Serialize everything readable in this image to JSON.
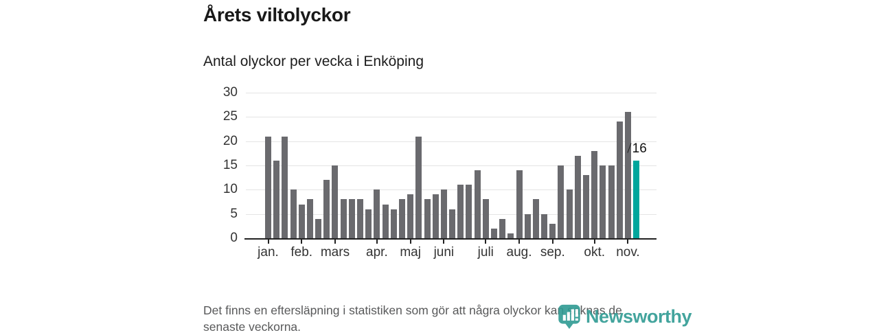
{
  "header": {
    "title": "Årets viltolyckor",
    "subtitle": "Antal olyckor per vecka i Enköping"
  },
  "footer": {
    "note_line1": "Det finns en eftersläpning i statistiken som gör att några olyckor kan saknas de",
    "note_line2": "senaste veckorna.",
    "brand_name": "Newsworthy",
    "brand_color": "#2f9b93",
    "brand_icon": "newsworthy-pin-icon"
  },
  "chart_data": {
    "type": "bar",
    "title": "Årets viltolyckor",
    "subtitle": "Antal olyckor per vecka i Enköping",
    "xlabel": "",
    "ylabel": "",
    "ylim": [
      0,
      30
    ],
    "yticks": [
      0,
      5,
      10,
      15,
      20,
      25,
      30
    ],
    "grid": true,
    "values": [
      21,
      16,
      21,
      10,
      7,
      8,
      4,
      12,
      15,
      8,
      8,
      8,
      6,
      10,
      7,
      6,
      8,
      9,
      21,
      8,
      9,
      10,
      6,
      11,
      11,
      14,
      8,
      2,
      4,
      1,
      14,
      5,
      8,
      5,
      3,
      15,
      10,
      17,
      13,
      18,
      15,
      15,
      24,
      26,
      16
    ],
    "month_labels": [
      "jan.",
      "feb.",
      "mars",
      "apr.",
      "maj",
      "juni",
      "juli",
      "aug.",
      "sep.",
      "okt.",
      "nov."
    ],
    "month_tick_bar_index": [
      0,
      4,
      8,
      13,
      17,
      21,
      26,
      30,
      34,
      39,
      43
    ],
    "bar_color": "#6a6a6e",
    "highlight_index": 44,
    "highlight_color": "#00a69c",
    "highlight_label": "16"
  }
}
